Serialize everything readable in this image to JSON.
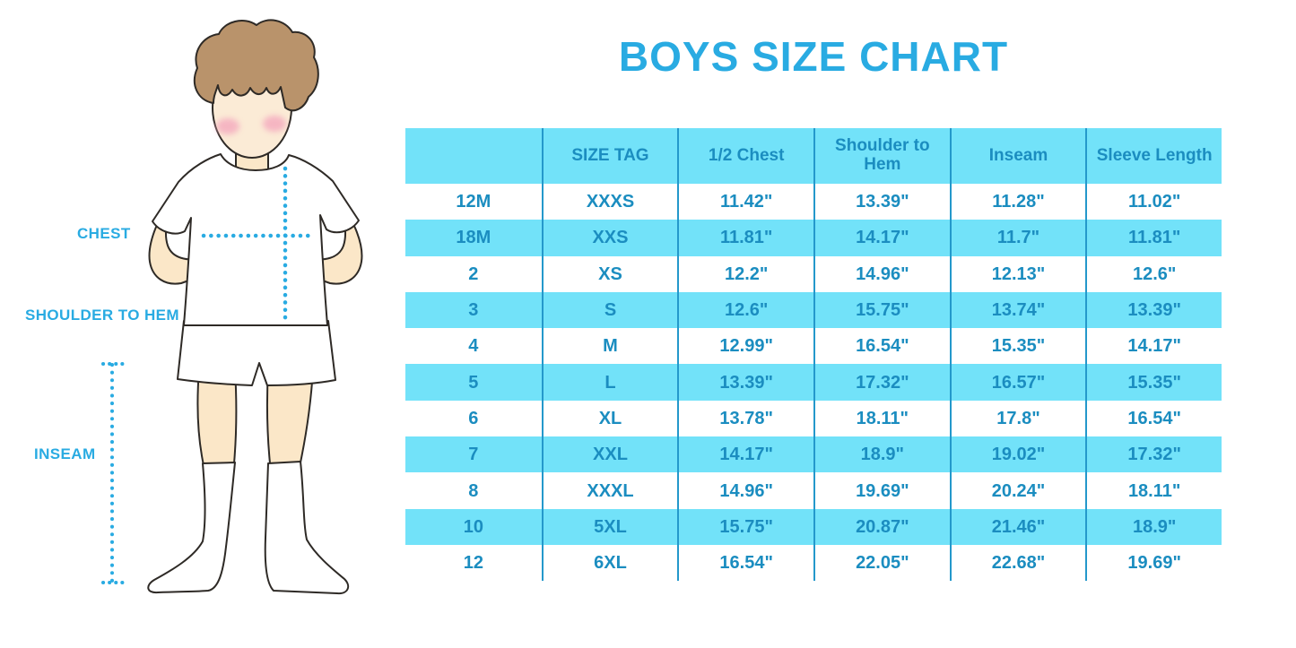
{
  "title": "BOYS SIZE CHART",
  "figure": {
    "description": "cartoon boy in white t-shirt, shorts and knee socks with measurement guides",
    "labels": {
      "chest": "CHEST",
      "shoulder_to_hem": "SHOULDER TO HEM",
      "inseam": "INSEAM"
    }
  },
  "colors": {
    "accent_blue": "#29ABE2",
    "row_cyan": "#72E2F9",
    "table_text": "#1B8DC0",
    "divider_line": "#2498CB"
  },
  "chart_data": {
    "type": "table",
    "title": "BOYS SIZE CHART",
    "columns": [
      "",
      "SIZE TAG",
      "1/2 Chest",
      "Shoulder to Hem",
      "Inseam",
      "Sleeve Length"
    ],
    "rows": [
      [
        "12M",
        "XXXS",
        "11.42\"",
        "13.39\"",
        "11.28\"",
        "11.02\""
      ],
      [
        "18M",
        "XXS",
        "11.81\"",
        "14.17\"",
        "11.7\"",
        "11.81\""
      ],
      [
        "2",
        "XS",
        "12.2\"",
        "14.96\"",
        "12.13\"",
        "12.6\""
      ],
      [
        "3",
        "S",
        "12.6\"",
        "15.75\"",
        "13.74\"",
        "13.39\""
      ],
      [
        "4",
        "M",
        "12.99\"",
        "16.54\"",
        "15.35\"",
        "14.17\""
      ],
      [
        "5",
        "L",
        "13.39\"",
        "17.32\"",
        "16.57\"",
        "15.35\""
      ],
      [
        "6",
        "XL",
        "13.78\"",
        "18.11\"",
        "17.8\"",
        "16.54\""
      ],
      [
        "7",
        "XXL",
        "14.17\"",
        "18.9\"",
        "19.02\"",
        "17.32\""
      ],
      [
        "8",
        "XXXL",
        "14.96\"",
        "19.69\"",
        "20.24\"",
        "18.11\""
      ],
      [
        "10",
        "5XL",
        "15.75\"",
        "20.87\"",
        "21.46\"",
        "18.9\""
      ],
      [
        "12",
        "6XL",
        "16.54\"",
        "22.05\"",
        "22.68\"",
        "19.69\""
      ]
    ],
    "layout": {
      "header_background": "#72E2F9",
      "row_striping": "white / cyan alternating starting white",
      "column_dividers": true,
      "horizontal_lines": false
    }
  }
}
